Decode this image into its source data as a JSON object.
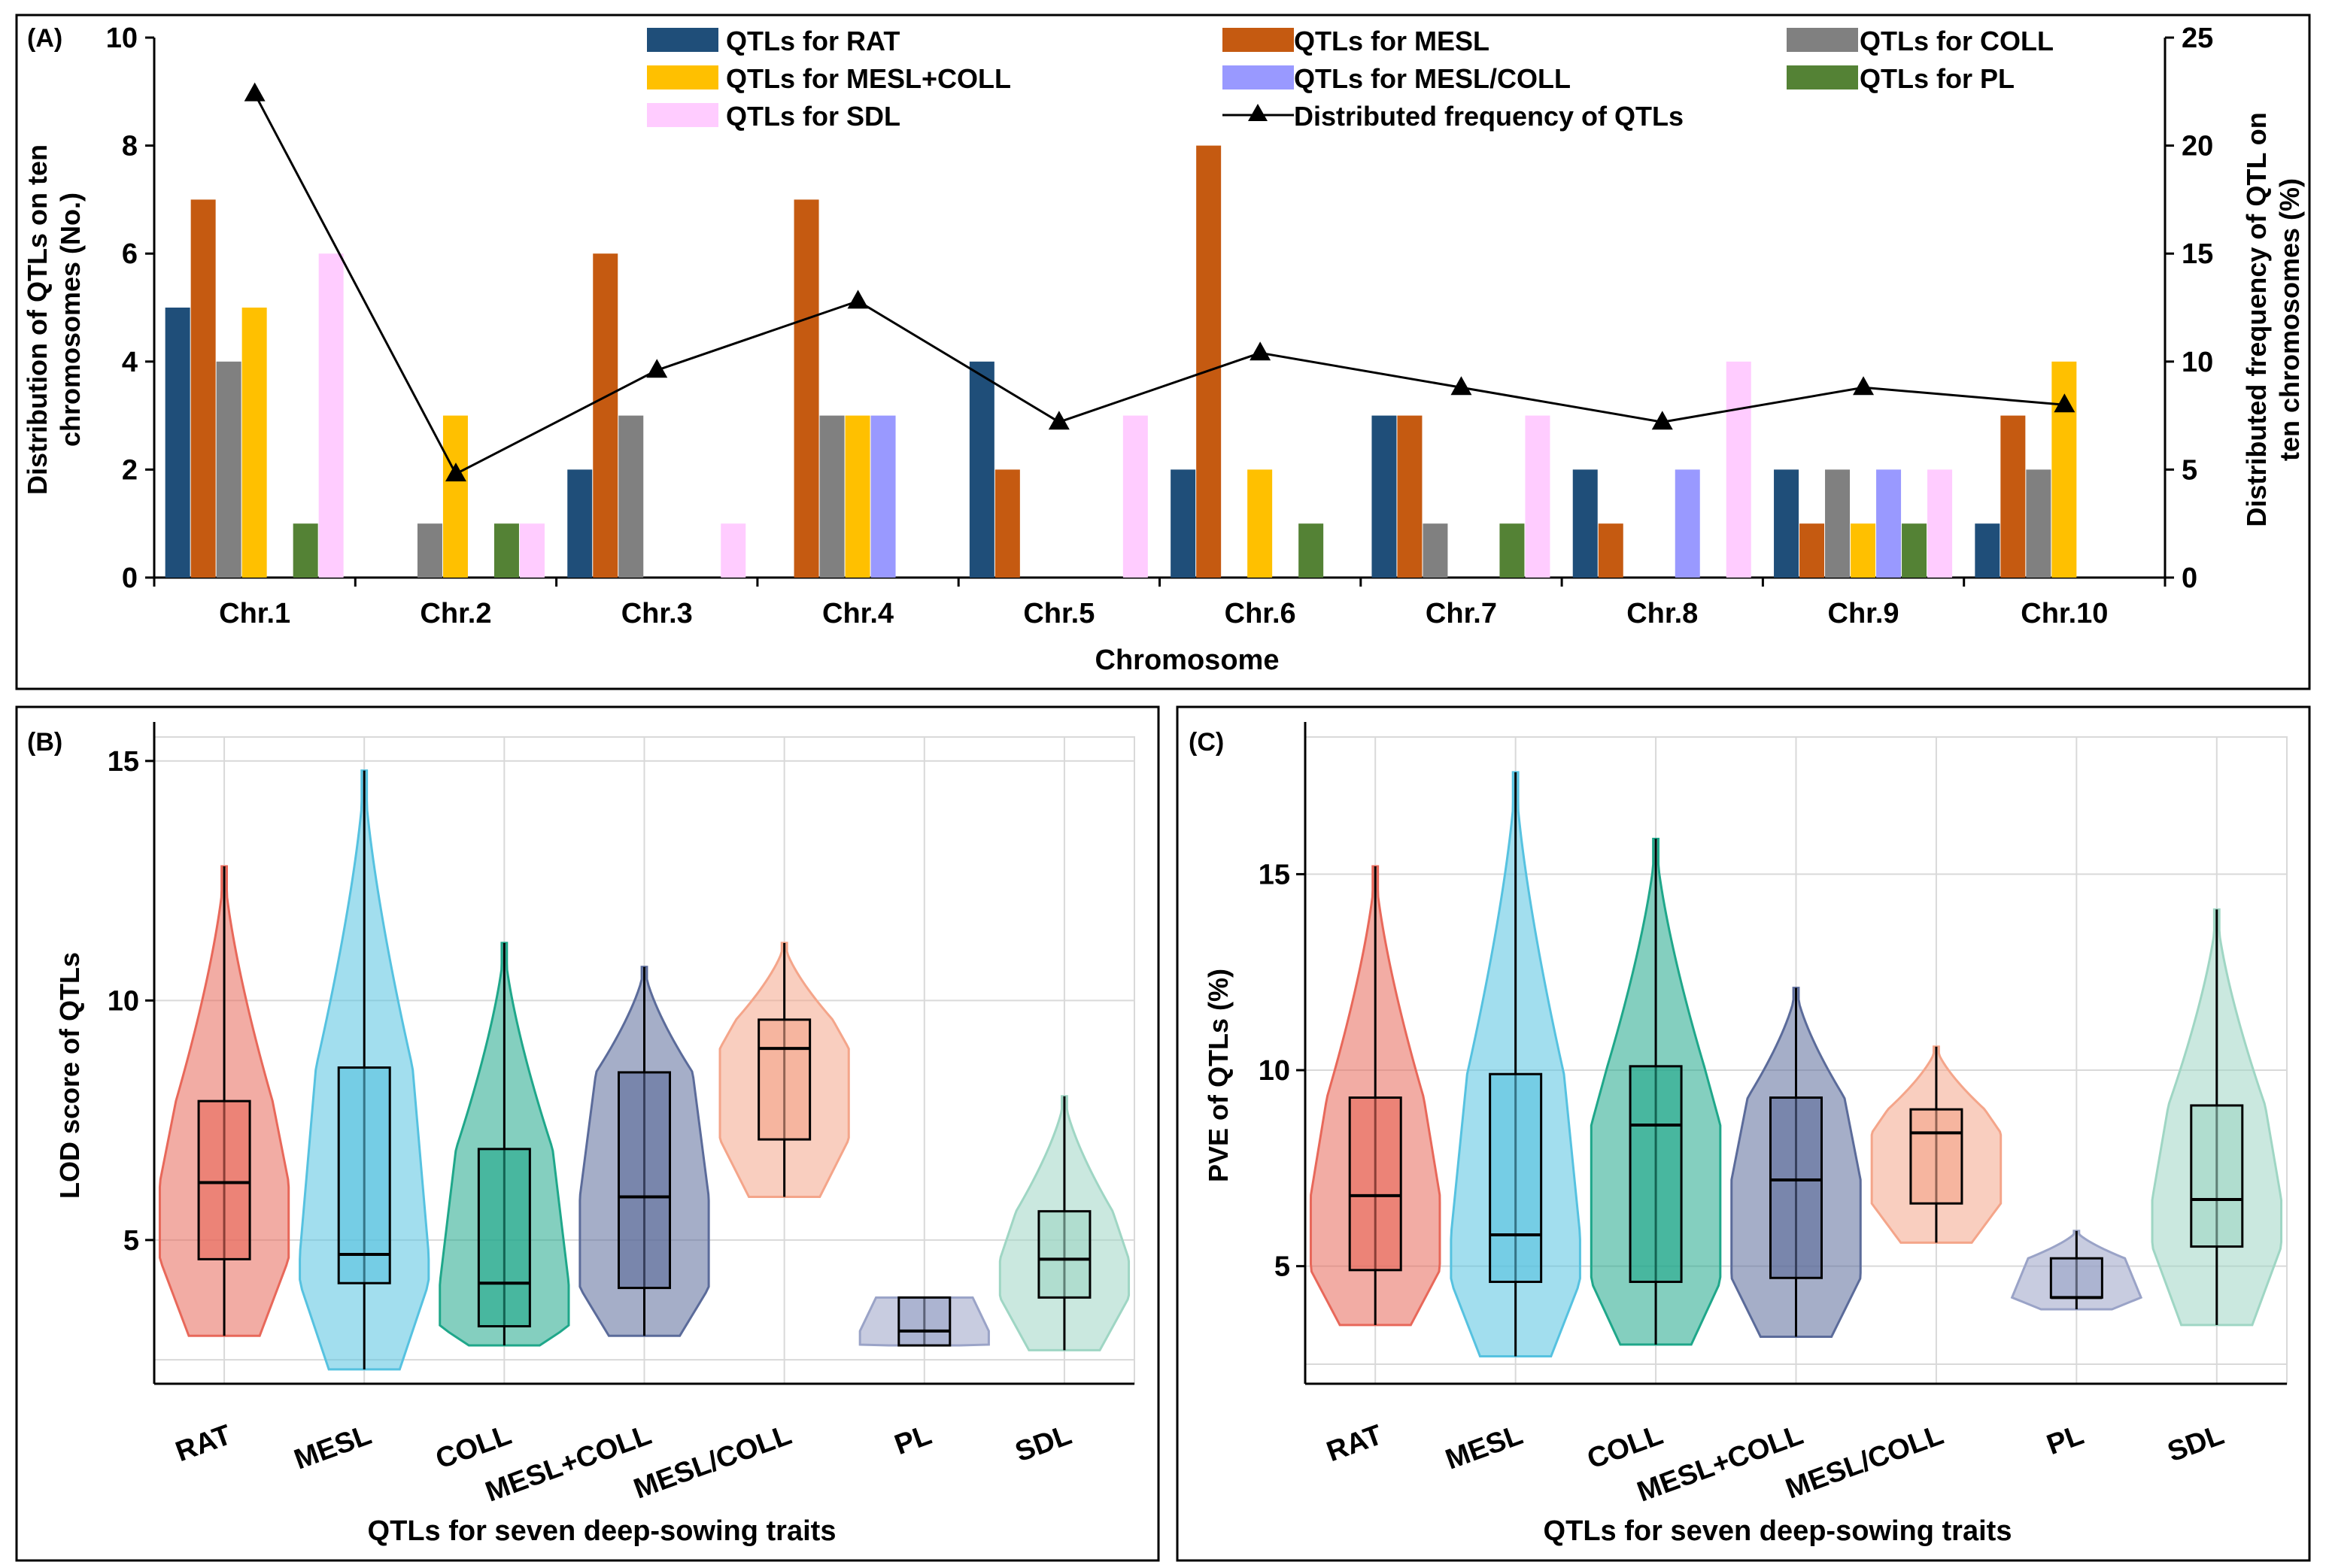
{
  "chart_data": [
    {
      "panel": "(A)",
      "type": "bar",
      "title": "",
      "xlabel": "Chromosome",
      "ylabel_left": "Distribution of QTLs on ten chromosomes (No.)",
      "ylabel_right": "Distributed frequency of QTL on ten chromosomes (%)",
      "ylim_left": [
        0,
        10
      ],
      "ylim_right": [
        0,
        25
      ],
      "yticks_left": [
        0,
        2,
        4,
        6,
        8,
        10
      ],
      "yticks_right": [
        0,
        5,
        10,
        15,
        20,
        25
      ],
      "categories": [
        "Chr.1",
        "Chr.2",
        "Chr.3",
        "Chr.4",
        "Chr.5",
        "Chr.6",
        "Chr.7",
        "Chr.8",
        "Chr.9",
        "Chr.10"
      ],
      "series": [
        {
          "name": "QTLs for RAT",
          "color": "#1F4E79",
          "values": [
            5,
            0,
            2,
            0,
            4,
            2,
            3,
            2,
            2,
            1
          ]
        },
        {
          "name": "QTLs for MESL",
          "color": "#C55A11",
          "values": [
            7,
            0,
            6,
            7,
            2,
            8,
            3,
            1,
            1,
            3
          ]
        },
        {
          "name": "QTLs for COLL",
          "color": "#808080",
          "values": [
            4,
            1,
            3,
            3,
            0,
            0,
            1,
            0,
            2,
            2
          ]
        },
        {
          "name": "QTLs for MESL+COLL",
          "color": "#FFC000",
          "values": [
            5,
            3,
            0,
            3,
            0,
            2,
            0,
            0,
            1,
            4
          ]
        },
        {
          "name": "QTLs for MESL/COLL",
          "color": "#9999FF",
          "values": [
            0,
            0,
            0,
            3,
            0,
            0,
            0,
            2,
            2,
            0
          ]
        },
        {
          "name": "QTLs for PL",
          "color": "#548235",
          "values": [
            1,
            1,
            0,
            0,
            0,
            1,
            1,
            0,
            1,
            0
          ]
        },
        {
          "name": "QTLs for SDL",
          "color": "#FFCCFF",
          "values": [
            6,
            1,
            1,
            0,
            3,
            0,
            3,
            4,
            2,
            0
          ]
        }
      ],
      "line": {
        "name": "Distributed frequency of QTLs",
        "axis": "right",
        "color": "#000000",
        "values": [
          22.4,
          4.8,
          9.6,
          12.8,
          7.2,
          10.4,
          8.8,
          7.2,
          8.8,
          8.0
        ]
      }
    },
    {
      "panel": "(B)",
      "type": "violin",
      "xlabel": "QTLs for seven deep-sowing traits",
      "ylabel": "LOD score of QTLs",
      "ylim": [
        2,
        15.5
      ],
      "yticks": [
        5,
        10,
        15
      ],
      "categories": [
        "RAT",
        "MESL",
        "COLL",
        "MESL+COLL",
        "MESL/COLL",
        "PL",
        "SDL"
      ],
      "groups": [
        {
          "name": "RAT",
          "color": "#E8685A",
          "min": 3.0,
          "q1": 4.6,
          "median": 6.2,
          "q3": 7.9,
          "max": 12.8
        },
        {
          "name": "MESL",
          "color": "#56C2E0",
          "min": 2.3,
          "q1": 4.1,
          "median": 4.7,
          "q3": 8.6,
          "max": 14.8
        },
        {
          "name": "COLL",
          "color": "#1FA78A",
          "min": 2.8,
          "q1": 3.2,
          "median": 4.1,
          "q3": 6.9,
          "max": 11.2
        },
        {
          "name": "MESL+COLL",
          "color": "#5B6B9A",
          "min": 3.0,
          "q1": 4.0,
          "median": 5.9,
          "q3": 8.5,
          "max": 10.7
        },
        {
          "name": "MESL/COLL",
          "color": "#F4A58A",
          "min": 5.9,
          "q1": 7.1,
          "median": 9.0,
          "q3": 9.6,
          "max": 11.2
        },
        {
          "name": "PL",
          "color": "#9AA3C7",
          "min": 2.8,
          "q1": 2.8,
          "median": 3.1,
          "q3": 3.8,
          "max": 3.8
        },
        {
          "name": "SDL",
          "color": "#9FD6C4",
          "min": 2.7,
          "q1": 3.8,
          "median": 4.6,
          "q3": 5.6,
          "max": 8.0
        }
      ]
    },
    {
      "panel": "(C)",
      "type": "violin",
      "xlabel": "QTLs for seven deep-sowing traits",
      "ylabel": "PVE of QTLs (%)",
      "ylim": [
        2,
        18.5
      ],
      "yticks": [
        5,
        10,
        15
      ],
      "categories": [
        "RAT",
        "MESL",
        "COLL",
        "MESL+COLL",
        "MESL/COLL",
        "PL",
        "SDL"
      ],
      "groups": [
        {
          "name": "RAT",
          "color": "#E8685A",
          "min": 3.5,
          "q1": 4.9,
          "median": 6.8,
          "q3": 9.3,
          "max": 15.2
        },
        {
          "name": "MESL",
          "color": "#56C2E0",
          "min": 2.7,
          "q1": 4.6,
          "median": 5.8,
          "q3": 9.9,
          "max": 17.6
        },
        {
          "name": "COLL",
          "color": "#1FA78A",
          "min": 3.0,
          "q1": 4.6,
          "median": 8.6,
          "q3": 10.1,
          "max": 15.9
        },
        {
          "name": "MESL+COLL",
          "color": "#5B6B9A",
          "min": 3.2,
          "q1": 4.7,
          "median": 7.2,
          "q3": 9.3,
          "max": 12.1
        },
        {
          "name": "MESL/COLL",
          "color": "#F4A58A",
          "min": 5.6,
          "q1": 6.6,
          "median": 8.4,
          "q3": 9.0,
          "max": 10.6
        },
        {
          "name": "PL",
          "color": "#9AA3C7",
          "min": 3.9,
          "q1": 4.2,
          "median": 4.2,
          "q3": 5.2,
          "max": 5.9
        },
        {
          "name": "SDL",
          "color": "#9FD6C4",
          "min": 3.5,
          "q1": 5.5,
          "median": 6.7,
          "q3": 9.1,
          "max": 14.1
        }
      ]
    }
  ],
  "panels": {
    "a_label": "(A)",
    "b_label": "(B)",
    "c_label": "(C)",
    "a_ylabel_left_line1": "Distribution of QTLs on ten",
    "a_ylabel_left_line2": "chromosomes (No.)",
    "a_ylabel_right_line1": "Distributed frequency of QTL on",
    "a_ylabel_right_line2": "ten chromosomes (%)"
  }
}
